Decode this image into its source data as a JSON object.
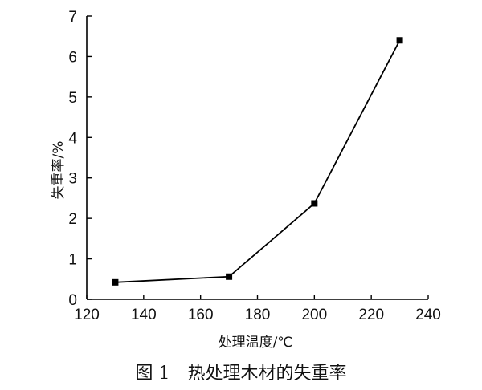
{
  "chart_data": {
    "type": "line",
    "title": "",
    "caption": "图 1　热处理木材的失重率",
    "xlabel": "处理温度/℃",
    "ylabel": "失重率/%",
    "x": [
      130,
      170,
      200,
      230
    ],
    "series": [
      {
        "values": [
          0.42,
          0.56,
          2.37,
          6.4
        ]
      }
    ],
    "xlim": [
      120,
      240
    ],
    "ylim": [
      0,
      7
    ],
    "xticks": [
      120,
      140,
      160,
      180,
      200,
      220,
      240
    ],
    "yticks": [
      0,
      1,
      2,
      3,
      4,
      5,
      6,
      7
    ],
    "grid": false,
    "legend": "none",
    "colors": {
      "line": "#000000",
      "marker": "#000000",
      "axis": "#000000"
    }
  }
}
